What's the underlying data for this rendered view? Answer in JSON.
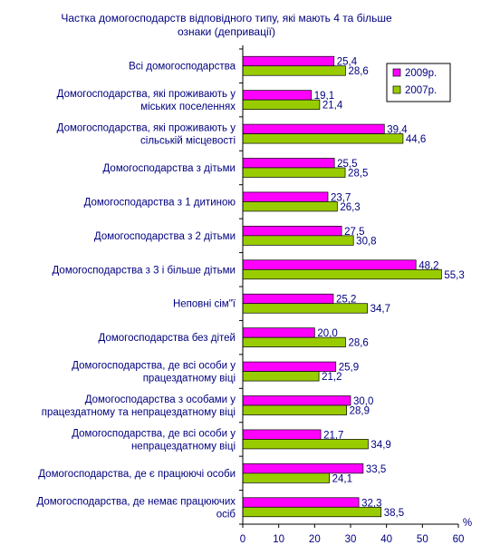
{
  "chart_data": {
    "type": "bar",
    "orientation": "horizontal",
    "title": [
      "Частка домогосподарств відповідного типу, які мають 4 та більше",
      "ознаки (депривації)"
    ],
    "categories": [
      [
        "Всі домогосподарства"
      ],
      [
        "Домогосподарства, які проживають у",
        "міських поселеннях"
      ],
      [
        "Домогосподарства, які проживають у",
        "сільській місцевості"
      ],
      [
        "Домогосподарства з дітьми"
      ],
      [
        "Домогосподарства з 1 дитиною"
      ],
      [
        "Домогосподарства з 2 дітьми"
      ],
      [
        "Домогосподарства з 3 і більше дітьми"
      ],
      [
        "Неповні сім\"ї"
      ],
      [
        "Домогосподарства без дітей"
      ],
      [
        "Домогосподарства, де всі особи у",
        "працездатному віці"
      ],
      [
        "Домогосподарства з особами у",
        "працездатному та непрацездатному віці"
      ],
      [
        "Домогосподарства, де всі особи у",
        "непрацездатному віці"
      ],
      [
        "Домогосподарства, де є працюючі особи"
      ],
      [
        "Домогосподарства, де немає працюючих",
        "осіб"
      ]
    ],
    "series": [
      {
        "name": "2009р.",
        "color": "#ff00ff",
        "values": [
          25.4,
          19.1,
          39.4,
          25.5,
          23.7,
          27.5,
          48.2,
          25.2,
          20.0,
          25.9,
          30.0,
          21.7,
          33.5,
          32.3
        ],
        "labels": [
          "25,4",
          "19,1",
          "39,4",
          "25,5",
          "23,7",
          "27,5",
          "48,2",
          "25,2",
          "20,0",
          "25,9",
          "30,0",
          "21,7",
          "33,5",
          "32,3"
        ]
      },
      {
        "name": "2007р.",
        "color": "#99cc00",
        "values": [
          28.6,
          21.4,
          44.6,
          28.5,
          26.3,
          30.8,
          55.3,
          34.7,
          28.6,
          21.2,
          28.9,
          34.9,
          24.1,
          38.5
        ],
        "labels": [
          "28,6",
          "21,4",
          "44,6",
          "28,5",
          "26,3",
          "30,8",
          "55,3",
          "34,7",
          "28,6",
          "21,2",
          "28,9",
          "34,9",
          "24,1",
          "38,5"
        ]
      }
    ],
    "xlim": [
      0,
      60
    ],
    "xticks": [
      "0",
      "10",
      "20",
      "30",
      "40",
      "50",
      "60"
    ],
    "xunit": "%",
    "legend_position": "top-right",
    "grid": false
  }
}
